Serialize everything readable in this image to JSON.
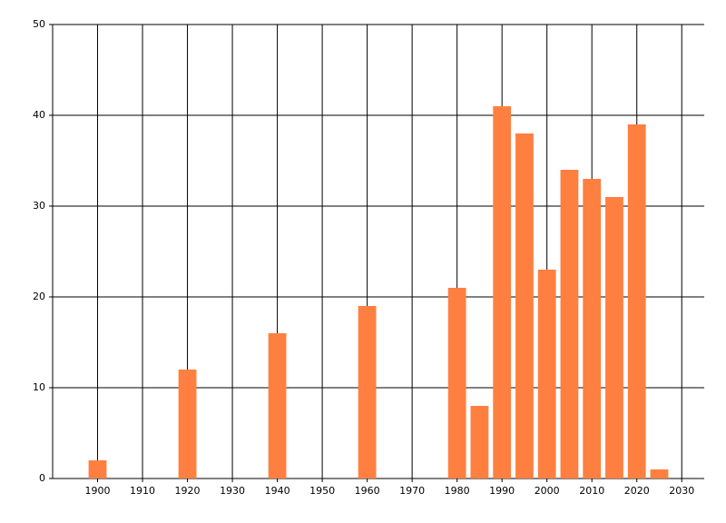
{
  "chart_data": {
    "type": "bar",
    "x": [
      1900,
      1920,
      1940,
      1960,
      1980,
      1985,
      1990,
      1995,
      2000,
      2005,
      2010,
      2015,
      2020,
      2025
    ],
    "values": [
      2,
      12,
      16,
      19,
      21,
      8,
      41,
      38,
      23,
      34,
      33,
      31,
      39,
      1
    ],
    "color": "#ff7f40",
    "xlim": [
      1890,
      2035
    ],
    "xticks": [
      1900,
      1910,
      1920,
      1930,
      1940,
      1950,
      1960,
      1970,
      1980,
      1990,
      2000,
      2010,
      2020,
      2030
    ],
    "ylim": [
      0,
      50
    ],
    "yticks": [
      0,
      10,
      20,
      30,
      40,
      50
    ],
    "grid": true
  }
}
